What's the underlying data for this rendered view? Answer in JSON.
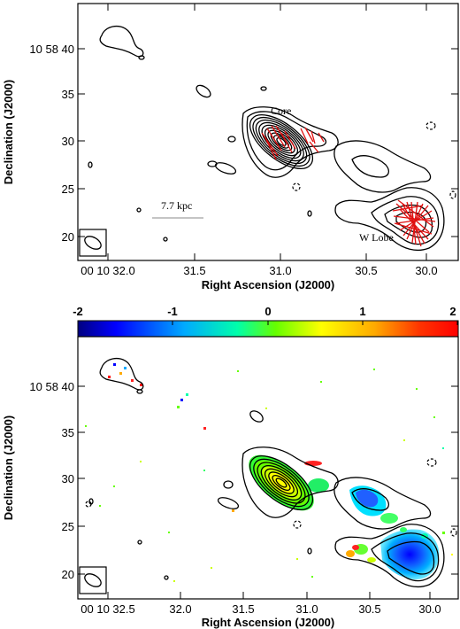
{
  "figure": {
    "panels": [
      {
        "id": "top",
        "ra_ticks": [
          "00 10 32.0",
          "31.5",
          "31.0",
          "30.5",
          "30.0"
        ],
        "dec_ticks": [
          "10 58 40",
          "35",
          "30",
          "25",
          "20"
        ],
        "xlabel": "Right Ascension (J2000)",
        "ylabel": "Declination (J2000)",
        "annotations": {
          "core": "Core",
          "lobe": "W Lobe",
          "scale_bar": "7.7 kpc"
        },
        "vector_color": "#e01010"
      },
      {
        "id": "bottom",
        "ra_ticks": [
          "00 10 32.5",
          "32.0",
          "31.5",
          "31.0",
          "30.5",
          "30.0"
        ],
        "dec_ticks": [
          "10 58 40",
          "35",
          "30",
          "25",
          "20"
        ],
        "xlabel": "Right Ascension (J2000)",
        "ylabel": "Declination (J2000)",
        "colorbar": {
          "ticks": [
            "-2",
            "-1",
            "0",
            "1",
            "2"
          ],
          "range": [
            -2,
            2
          ],
          "colors": [
            "#000080",
            "#0000ff",
            "#00aaff",
            "#00ffaa",
            "#66ff00",
            "#ffff00",
            "#ffaa00",
            "#ff3300",
            "#ff0000"
          ]
        }
      }
    ]
  },
  "chart_data": [
    {
      "type": "contour",
      "x_axis": "Right Ascension (J2000)",
      "y_axis": "Declination (J2000)",
      "xlim": [
        "00 10 32.3",
        "00 10 29.7"
      ],
      "ylim": [
        "10 58 18",
        "10 58 45"
      ],
      "features": [
        "Core",
        "W Lobe"
      ],
      "overlay": "polarization vectors (red)"
    },
    {
      "type": "heatmap",
      "x_axis": "Right Ascension (J2000)",
      "y_axis": "Declination (J2000)",
      "xlim": [
        "00 10 32.5",
        "00 10 29.7"
      ],
      "ylim": [
        "10 58 18",
        "10 58 45"
      ],
      "color_range": [
        -2,
        2
      ],
      "overlay": "contours (black)"
    }
  ]
}
